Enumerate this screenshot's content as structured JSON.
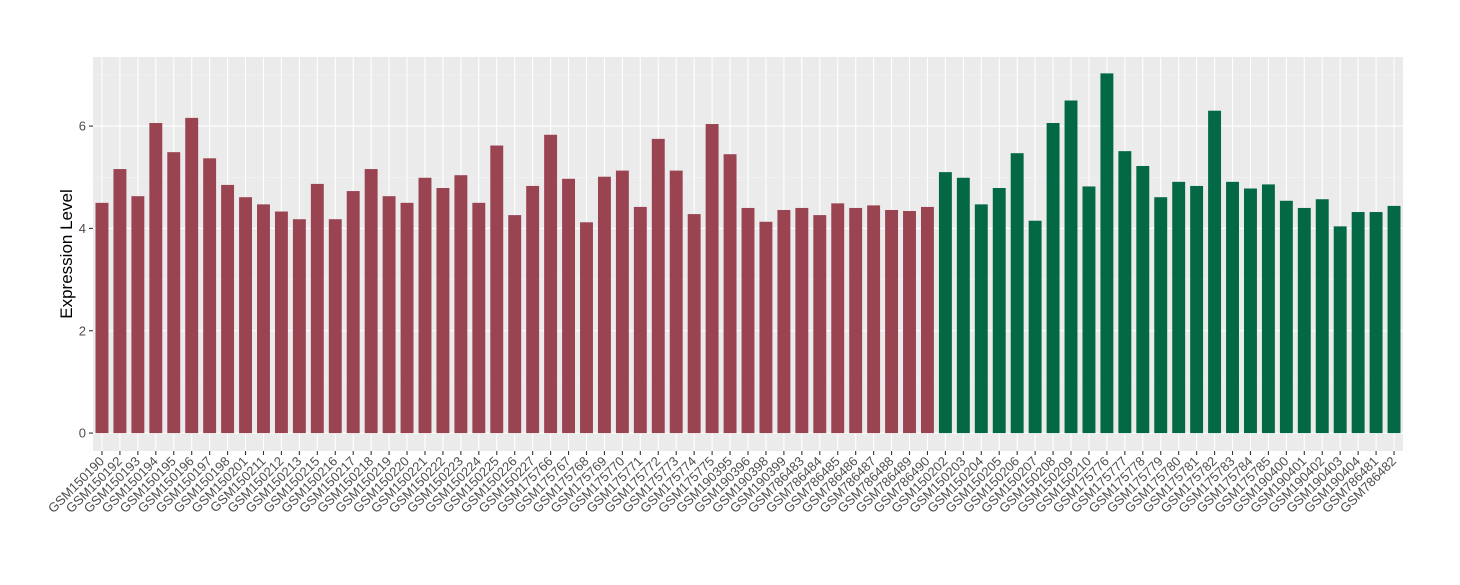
{
  "chart_data": {
    "type": "bar",
    "title": "",
    "xlabel": "",
    "ylabel": "Expression Level",
    "ylim": [
      -0.35,
      7.35
    ],
    "yticks": [
      0,
      2,
      4,
      6
    ],
    "grid": true,
    "legend": "none",
    "colors": {
      "panel_background": "#EBEBEB",
      "grid_major": "#FFFFFF",
      "grid_minor": "#F4F4F4",
      "group_1": "#9A4452",
      "group_2": "#026944"
    },
    "categories": [
      "GSM150190",
      "GSM150192",
      "GSM150193",
      "GSM150194",
      "GSM150195",
      "GSM150196",
      "GSM150197",
      "GSM150198",
      "GSM150201",
      "GSM150211",
      "GSM150212",
      "GSM150213",
      "GSM150215",
      "GSM150216",
      "GSM150217",
      "GSM150218",
      "GSM150219",
      "GSM150220",
      "GSM150221",
      "GSM150222",
      "GSM150223",
      "GSM150224",
      "GSM150225",
      "GSM150226",
      "GSM150227",
      "GSM175766",
      "GSM175767",
      "GSM175768",
      "GSM175769",
      "GSM175770",
      "GSM175771",
      "GSM175772",
      "GSM175773",
      "GSM175774",
      "GSM175775",
      "GSM190395",
      "GSM190396",
      "GSM190398",
      "GSM190399",
      "GSM786483",
      "GSM786484",
      "GSM786485",
      "GSM786486",
      "GSM786487",
      "GSM786488",
      "GSM786489",
      "GSM786490",
      "GSM150202",
      "GSM150203",
      "GSM150204",
      "GSM150205",
      "GSM150206",
      "GSM150207",
      "GSM150208",
      "GSM150209",
      "GSM150210",
      "GSM175776",
      "GSM175777",
      "GSM175778",
      "GSM175779",
      "GSM175780",
      "GSM175781",
      "GSM175782",
      "GSM175783",
      "GSM175784",
      "GSM175785",
      "GSM190400",
      "GSM190401",
      "GSM190402",
      "GSM190403",
      "GSM190404",
      "GSM786481",
      "GSM786482"
    ],
    "values": [
      4.5,
      5.16,
      4.63,
      6.06,
      5.49,
      6.16,
      5.37,
      4.85,
      4.61,
      4.47,
      4.33,
      4.18,
      4.87,
      4.18,
      4.73,
      5.16,
      4.63,
      4.5,
      4.99,
      4.79,
      5.04,
      4.5,
      5.62,
      4.26,
      4.83,
      5.83,
      4.97,
      4.12,
      5.01,
      5.13,
      4.42,
      5.75,
      5.13,
      4.28,
      6.04,
      5.45,
      4.4,
      4.13,
      4.36,
      4.4,
      4.26,
      4.49,
      4.4,
      4.45,
      4.36,
      4.34,
      4.42,
      5.1,
      4.99,
      4.47,
      4.79,
      5.47,
      4.15,
      6.06,
      6.5,
      4.82,
      7.03,
      5.51,
      5.22,
      4.61,
      4.91,
      4.83,
      6.3,
      4.91,
      4.78,
      4.86,
      4.54,
      4.4,
      4.57,
      4.04,
      4.32,
      4.32,
      4.44
    ],
    "group_split_index": 47
  }
}
